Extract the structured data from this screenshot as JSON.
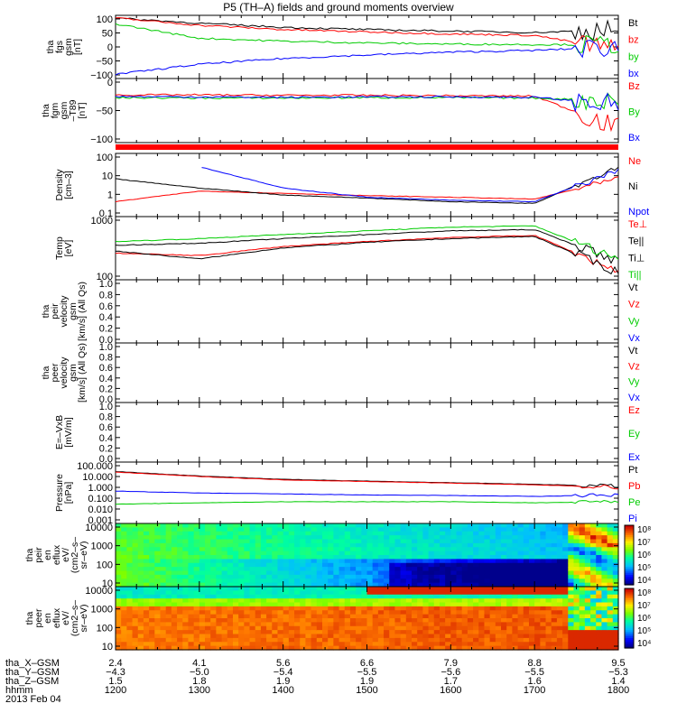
{
  "title": "P5 (TH–A) fields and ground moments overview",
  "colors": {
    "red": "#ff0000",
    "green": "#00cc00",
    "blue": "#0000ff",
    "black": "#000000"
  },
  "panels": [
    {
      "id": "fgs",
      "ylabel": [
        "tha",
        "fgs",
        "gsm",
        "[nT]"
      ],
      "ticks": [
        "100",
        "50",
        "0",
        "−50",
        "−100"
      ],
      "legend": [
        {
          "text": "Bt",
          "color": "#000000"
        },
        {
          "text": "bz",
          "color": "#ff0000"
        },
        {
          "text": "by",
          "color": "#00cc00"
        },
        {
          "text": "bx",
          "color": "#0000ff"
        }
      ]
    },
    {
      "id": "fgm",
      "ylabel": [
        "tha",
        "fgm",
        "gsm",
        "–T89",
        "[nT]"
      ],
      "ticks": [
        "0",
        "−50",
        "−100"
      ],
      "legend": [
        {
          "text": "Bz",
          "color": "#ff0000"
        },
        {
          "text": "By",
          "color": "#00cc00"
        },
        {
          "text": "Bx",
          "color": "#0000ff"
        }
      ]
    },
    {
      "id": "density",
      "ylabel": [
        "Density",
        "[cm–3]"
      ],
      "ticks": [
        "100",
        "10",
        "1",
        "0.1"
      ],
      "legend": [
        {
          "text": "Ne",
          "color": "#ff0000"
        },
        {
          "text": "Ni",
          "color": "#000000"
        },
        {
          "text": "Npot",
          "color": "#0000ff"
        }
      ]
    },
    {
      "id": "temp",
      "ylabel": [
        "Temp",
        "[eV]"
      ],
      "ticks": [
        "1000",
        "100"
      ],
      "legend": [
        {
          "text": "Te⊥",
          "color": "#ff0000"
        },
        {
          "text": "Te||",
          "color": "#000000"
        },
        {
          "text": "Ti⊥",
          "color": "#000000"
        },
        {
          "text": "Ti||",
          "color": "#00cc00"
        }
      ]
    },
    {
      "id": "peir_vel",
      "ylabel": [
        "tha",
        "peir",
        "velocity",
        "gsm",
        "[km/s] (All Qs)"
      ],
      "ticks": [
        "1.0",
        "0.8",
        "0.6",
        "0.4",
        "0.2",
        "0.0"
      ],
      "legend": [
        {
          "text": "Vt",
          "color": "#000000"
        },
        {
          "text": "Vz",
          "color": "#ff0000"
        },
        {
          "text": "Vy",
          "color": "#00cc00"
        },
        {
          "text": "Vx",
          "color": "#0000ff"
        }
      ]
    },
    {
      "id": "peer_vel",
      "ylabel": [
        "tha",
        "peer",
        "velocity",
        "gsm",
        "[km/s] (All Qs)"
      ],
      "ticks": [
        "1.0",
        "0.8",
        "0.6",
        "0.4",
        "0.2",
        "0.0"
      ],
      "legend": [
        {
          "text": "Vt",
          "color": "#000000"
        },
        {
          "text": "Vz",
          "color": "#ff0000"
        },
        {
          "text": "Vy",
          "color": "#00cc00"
        },
        {
          "text": "Vx",
          "color": "#0000ff"
        }
      ]
    },
    {
      "id": "exb",
      "ylabel": [
        "E=–VxB",
        "[mV/m]"
      ],
      "ticks": [
        "1.0",
        "0.8",
        "0.6",
        "0.4",
        "0.2",
        "0.0"
      ],
      "legend": [
        {
          "text": "Ez",
          "color": "#ff0000"
        },
        {
          "text": "Ey",
          "color": "#00cc00"
        },
        {
          "text": "Ex",
          "color": "#0000ff"
        }
      ]
    },
    {
      "id": "pressure",
      "ylabel": [
        "Pressure",
        "[nPa]"
      ],
      "ticks": [
        "100.000",
        "10.000",
        "1.000",
        "0.100",
        "0.010",
        "0.001"
      ],
      "legend": [
        {
          "text": "Pt",
          "color": "#000000"
        },
        {
          "text": "Pb",
          "color": "#ff0000"
        },
        {
          "text": "Pe",
          "color": "#00cc00"
        },
        {
          "text": "Pi",
          "color": "#0000ff"
        }
      ]
    },
    {
      "id": "peir_eflux",
      "ylabel": [
        "tha",
        "peir",
        "en",
        "eflux",
        "eV/",
        "(cm2–s–",
        "sr–eV)"
      ],
      "ticks": [
        "10000",
        "1000",
        "100",
        "10"
      ],
      "cbar": [
        "10⁸",
        "10⁷",
        "10⁶",
        "10⁵",
        "10⁴"
      ]
    },
    {
      "id": "peer_eflux",
      "ylabel": [
        "tha",
        "peer",
        "en",
        "eflux",
        "eV/",
        "(cm2–s–",
        "sr–eV)"
      ],
      "ticks": [
        "10000",
        "1000",
        "100",
        "10"
      ],
      "cbar": [
        "10⁸",
        "10⁷",
        "10⁶",
        "10⁵",
        "10⁴"
      ]
    }
  ],
  "ephemeris": {
    "labels": [
      "tha_X–GSM",
      "tha_Y–GSM",
      "tha_Z–GSM",
      "hhmm",
      "2013 Feb 04"
    ],
    "x": [
      "2.4",
      "4.1",
      "5.6",
      "6.6",
      "7.9",
      "8.8",
      "9.5"
    ],
    "y": [
      "−4.3",
      "−5.0",
      "−5.4",
      "−5.5",
      "−5.6",
      "−5.5",
      "−5.3"
    ],
    "z": [
      "1.5",
      "1.8",
      "1.9",
      "1.9",
      "1.7",
      "1.6",
      "1.4"
    ],
    "hhmm": [
      "1200",
      "1300",
      "1400",
      "1500",
      "1600",
      "1700",
      "1800"
    ]
  },
  "chart_data": [
    {
      "type": "line",
      "title": "P5 (TH–A) fields and ground moments overview",
      "ylabel": "tha fgs gsm [nT]",
      "ylim": [
        -100,
        100
      ],
      "x": [
        "1200",
        "1300",
        "1400",
        "1500",
        "1600",
        "1700",
        "1800"
      ],
      "series": [
        {
          "name": "Bt",
          "values": [
            100,
            82,
            68,
            60,
            55,
            50,
            60
          ]
        },
        {
          "name": "bz",
          "values": [
            100,
            75,
            60,
            52,
            45,
            40,
            -10
          ]
        },
        {
          "name": "by",
          "values": [
            80,
            30,
            20,
            14,
            10,
            8,
            8
          ]
        },
        {
          "name": "bx",
          "values": [
            -95,
            -60,
            -40,
            -28,
            -18,
            -12,
            0
          ]
        }
      ]
    },
    {
      "type": "line",
      "ylabel": "tha fgm gsm –T89 [nT]",
      "ylim": [
        -110,
        40
      ],
      "x": [
        "1200",
        "1300",
        "1400",
        "1500",
        "1600",
        "1700",
        "1800"
      ],
      "series": [
        {
          "name": "Bz",
          "values": [
            5,
            5,
            4,
            4,
            3,
            2,
            -80
          ]
        },
        {
          "name": "By",
          "values": [
            -2,
            -3,
            -3,
            -2,
            -2,
            -3,
            -10
          ]
        },
        {
          "name": "Bx",
          "values": [
            1,
            0,
            -1,
            0,
            0,
            -1,
            -20
          ]
        }
      ]
    },
    {
      "type": "line",
      "ylabel": "Density [cm–3]",
      "yscale": "log",
      "ylim": [
        0.1,
        200
      ],
      "x": [
        "1200",
        "1300",
        "1400",
        "1500",
        "1600",
        "1700",
        "1800"
      ],
      "series": [
        {
          "name": "Ne",
          "values": [
            0.5,
            2.0,
            1.5,
            1.1,
            0.9,
            0.7,
            10
          ]
        },
        {
          "name": "Ni",
          "values": [
            10,
            3,
            1.2,
            0.8,
            0.5,
            0.4,
            50
          ]
        },
        {
          "name": "Npot",
          "values": [
            null,
            50,
            3,
            0.9,
            0.6,
            0.5,
            30
          ]
        }
      ]
    },
    {
      "type": "line",
      "ylabel": "Temp [eV]",
      "yscale": "log",
      "ylim": [
        30,
        5000
      ],
      "x": [
        "1200",
        "1300",
        "1400",
        "1500",
        "1600",
        "1700",
        "1800"
      ],
      "series": [
        {
          "name": "Te⊥",
          "values": [
            250,
            200,
            450,
            700,
            1000,
            1200,
            50
          ]
        },
        {
          "name": "Te||",
          "values": [
            300,
            150,
            400,
            650,
            900,
            1100,
            45
          ]
        },
        {
          "name": "Ti⊥",
          "values": [
            500,
            600,
            900,
            1300,
            1800,
            2000,
            120
          ]
        },
        {
          "name": "Ti||",
          "values": [
            700,
            900,
            1300,
            1800,
            2500,
            2800,
            150
          ]
        }
      ]
    },
    {
      "type": "line",
      "ylabel": "Pressure [nPa]",
      "yscale": "log",
      "ylim": [
        0.001,
        100
      ],
      "x": [
        "1200",
        "1300",
        "1400",
        "1500",
        "1600",
        "1700",
        "1800"
      ],
      "series": [
        {
          "name": "Pt",
          "values": [
            25,
            10,
            5,
            3.5,
            2.5,
            1.8,
            1.2
          ]
        },
        {
          "name": "Pb",
          "values": [
            22,
            9,
            4.5,
            3.2,
            2.3,
            1.6,
            1.0
          ]
        },
        {
          "name": "Pe",
          "values": [
            0.03,
            0.04,
            0.05,
            0.05,
            0.05,
            0.04,
            0.05
          ]
        },
        {
          "name": "Pi",
          "values": [
            0.45,
            0.3,
            0.25,
            0.2,
            0.18,
            0.15,
            0.2
          ]
        }
      ]
    },
    {
      "type": "heatmap",
      "ylabel": "tha peir en eflux eV/(cm2–s–sr–eV)",
      "yscale": "log",
      "ylim": [
        7,
        20000
      ],
      "zlim": [
        10000.0,
        100000000.0
      ]
    },
    {
      "type": "heatmap",
      "ylabel": "tha peer en eflux eV/(cm2–s–sr–eV)",
      "yscale": "log",
      "ylim": [
        7,
        20000
      ],
      "zlim": [
        10000.0,
        100000000.0
      ]
    }
  ]
}
